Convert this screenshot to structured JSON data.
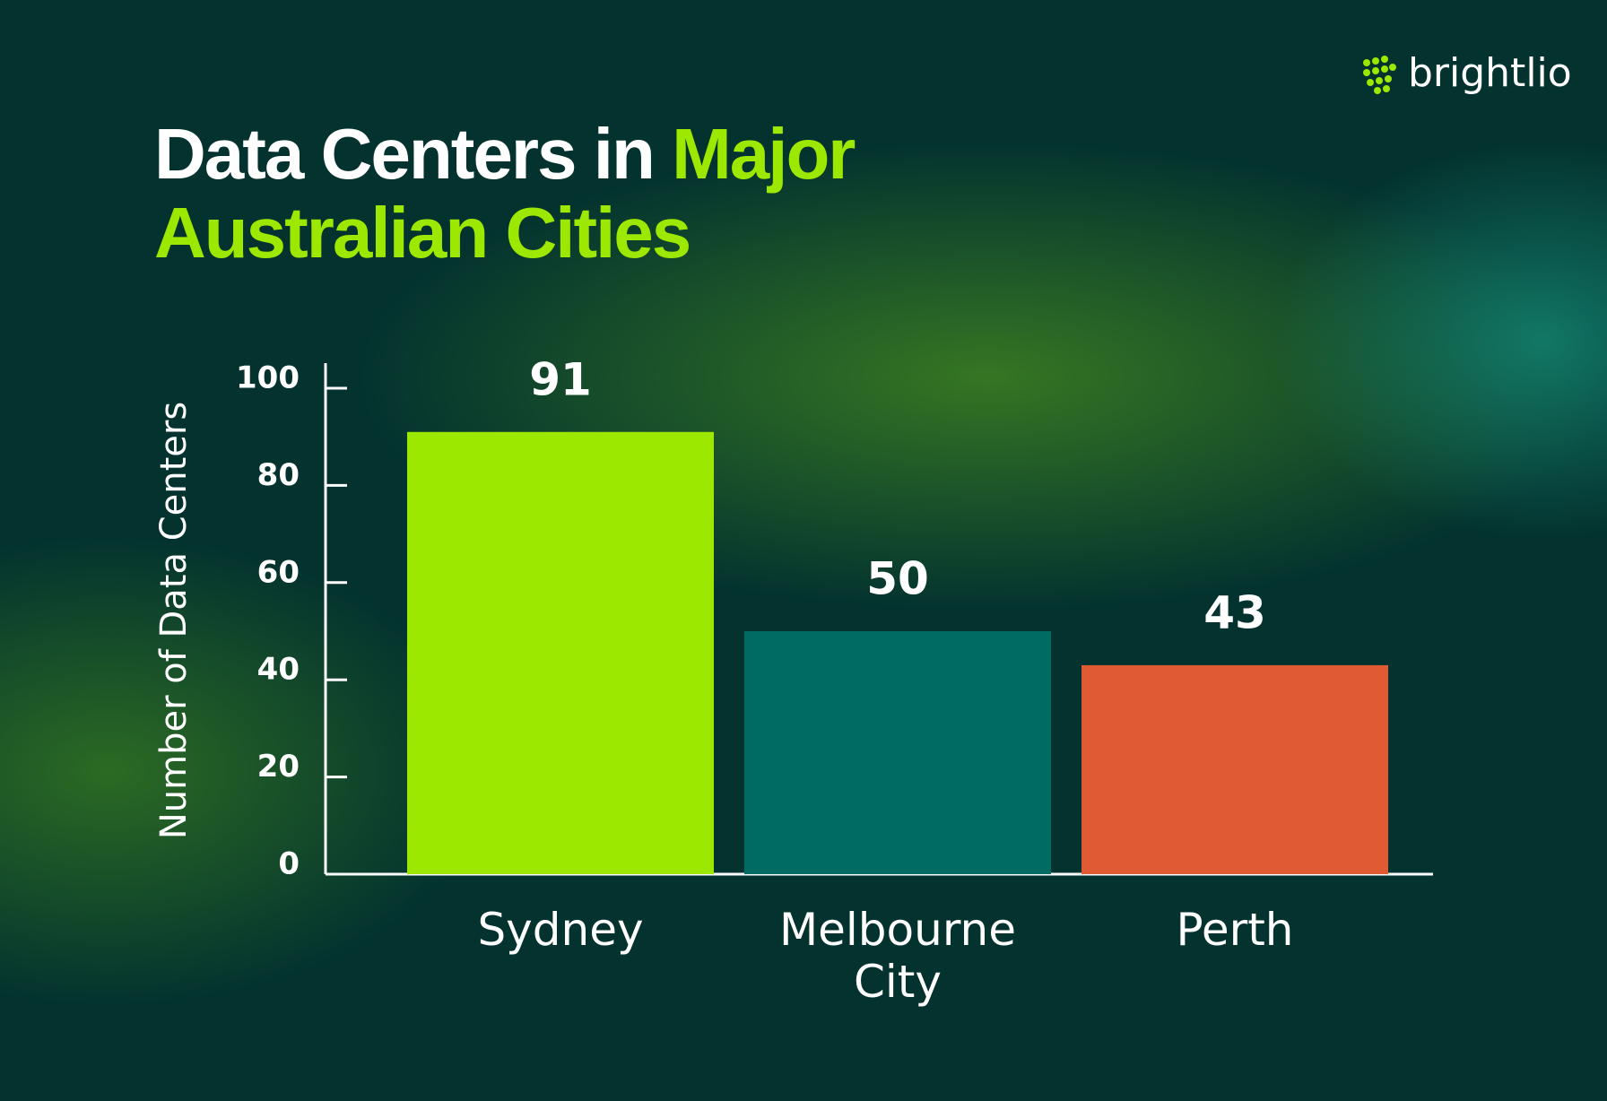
{
  "brand": "brightlio",
  "chart_data": {
    "type": "bar",
    "title": [
      "Data Centers in",
      "Major Australian Cities"
    ],
    "y_label": "Number of Data Centers",
    "categories": [
      "Sydney",
      "Melbourne City",
      "Perth"
    ],
    "values": [
      91,
      50,
      43
    ],
    "colors": [
      "#9de800",
      "#006b62",
      "#e05a33"
    ],
    "ylim": [
      0,
      100
    ],
    "yticks": [
      0,
      20,
      40,
      60,
      80,
      100
    ],
    "grid": false
  }
}
